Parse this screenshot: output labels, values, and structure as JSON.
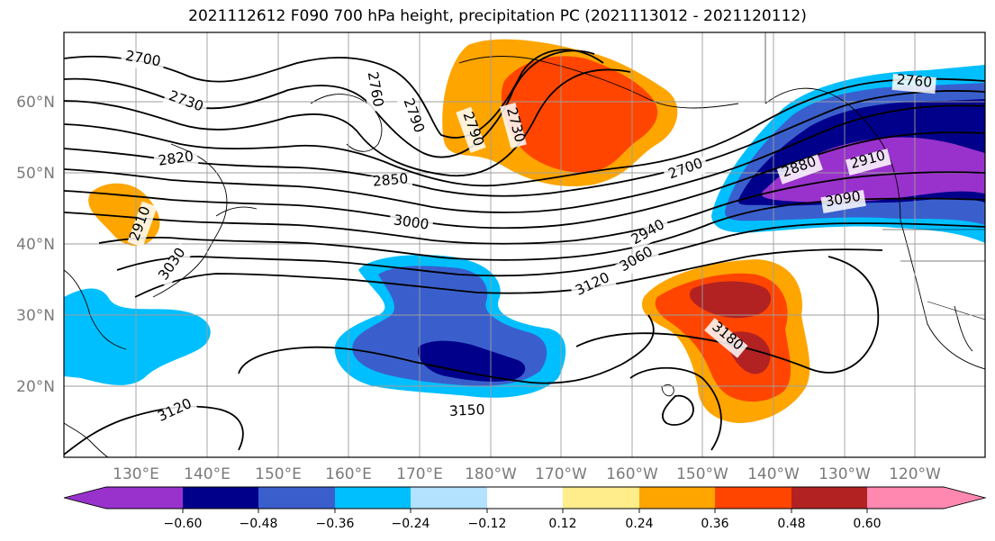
{
  "title": "2021112612 F090 700 hPa height, precipitation PC (2021113012 - 2021120112)",
  "lat_labels": [
    "60°N",
    "50°N",
    "40°N",
    "30°N",
    "20°N"
  ],
  "lon_labels": [
    "130°E",
    "140°E",
    "150°E",
    "160°E",
    "170°E",
    "180°W",
    "170°W",
    "160°W",
    "150°W",
    "140°W",
    "130°W",
    "120°W"
  ],
  "contour_labels": [
    "2700",
    "2730",
    "2760",
    "2790",
    "2790",
    "2730",
    "2820",
    "2850",
    "3000",
    "2910",
    "3030",
    "2700",
    "2880",
    "2910",
    "3090",
    "2760",
    "2940",
    "3060",
    "3120",
    "3180",
    "3150",
    "3120"
  ],
  "colorbar": {
    "ticks": [
      "−0.60",
      "−0.48",
      "−0.36",
      "−0.24",
      "−0.12",
      "0.12",
      "0.24",
      "0.36",
      "0.48",
      "0.60"
    ],
    "colors": [
      "#9932cc",
      "#00008b",
      "#3a5fcd",
      "#00bfff",
      "#b2e2ff",
      "#ffffff",
      "#ffec8b",
      "#ffa500",
      "#ff4500",
      "#b22222",
      "#ff88b0"
    ]
  }
}
